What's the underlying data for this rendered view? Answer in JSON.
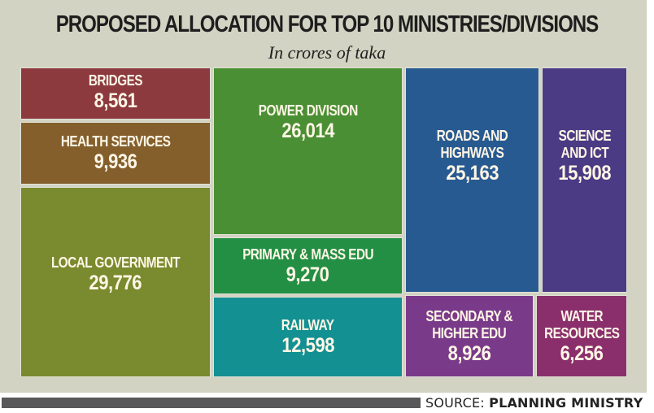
{
  "chart_data": {
    "type": "treemap",
    "title": "PROPOSED ALLOCATION FOR TOP 10 MINISTRIES/DIVISIONS",
    "subtitle": "In crores of taka",
    "unit": "crores of taka",
    "items": [
      {
        "label": "BRIDGES",
        "value": 8561,
        "display": "8,561",
        "color": "#8c3a3e"
      },
      {
        "label": "HEALTH SERVICES",
        "value": 9936,
        "display": "9,936",
        "color": "#845f2c"
      },
      {
        "label": "LOCAL GOVERNMENT",
        "value": 29776,
        "display": "29,776",
        "color": "#7a8a2e"
      },
      {
        "label": "POWER DIVISION",
        "value": 26014,
        "display": "26,014",
        "color": "#4a8f34"
      },
      {
        "label": "PRIMARY & MASS EDU",
        "value": 9270,
        "display": "9,270",
        "color": "#238f44"
      },
      {
        "label": "RAILWAY",
        "value": 12598,
        "display": "12,598",
        "color": "#139092"
      },
      {
        "label": "ROADS AND\nHIGHWAYS",
        "value": 25163,
        "display": "25,163",
        "color": "#285a92"
      },
      {
        "label": "SCIENCE\nAND ICT",
        "value": 15908,
        "display": "15,908",
        "color": "#4b3b84"
      },
      {
        "label": "SECONDARY &\nHIGHER EDU",
        "value": 8926,
        "display": "8,926",
        "color": "#7a3a8a"
      },
      {
        "label": "WATER\nRESOURCES",
        "value": 6256,
        "display": "6,256",
        "color": "#8a2f6c"
      }
    ]
  },
  "footer": {
    "source_prefix": "SOURCE: ",
    "source_name": "PLANNING MINISTRY"
  }
}
